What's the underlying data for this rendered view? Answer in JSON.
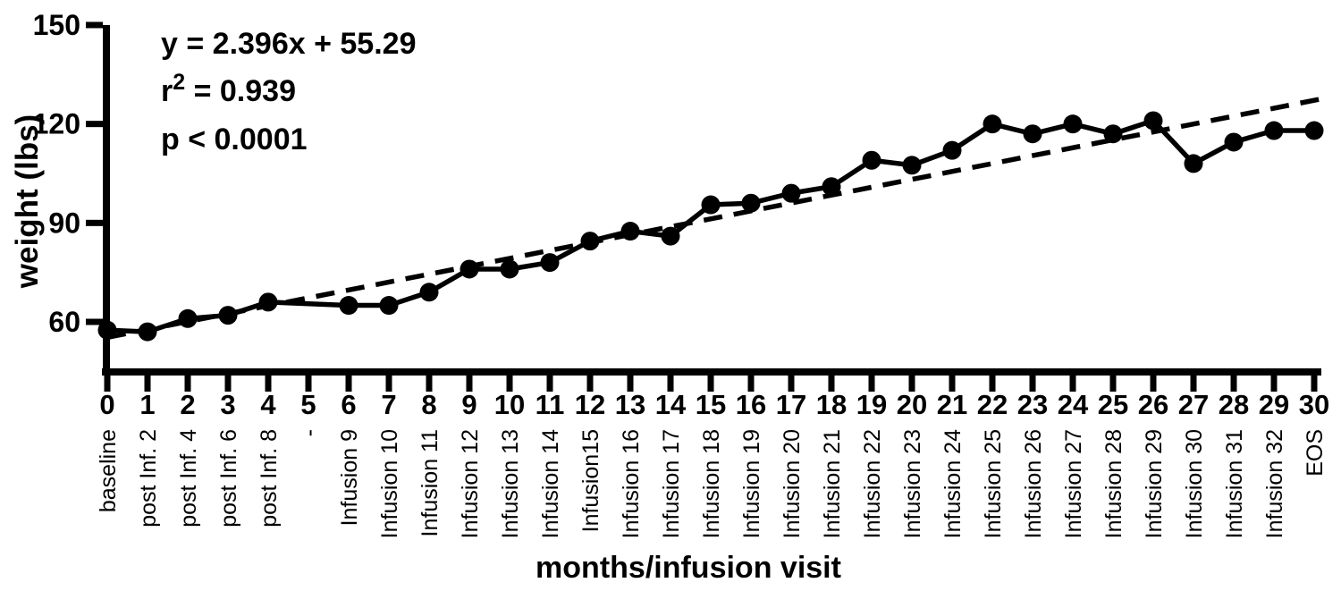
{
  "chart_data": {
    "type": "scatter",
    "title": "",
    "xlabel": "months/infusion visit",
    "ylabel": "weight (lbs)",
    "x": [
      0,
      1,
      2,
      3,
      4,
      5,
      6,
      7,
      8,
      9,
      10,
      11,
      12,
      13,
      14,
      15,
      16,
      17,
      18,
      19,
      20,
      21,
      22,
      23,
      24,
      25,
      26,
      27,
      28,
      29,
      30
    ],
    "x_tick_labels": [
      "0",
      "1",
      "2",
      "3",
      "4",
      "5",
      "6",
      "7",
      "8",
      "9",
      "10",
      "11",
      "12",
      "13",
      "14",
      "15",
      "16",
      "17",
      "18",
      "19",
      "20",
      "21",
      "22",
      "23",
      "24",
      "25",
      "26",
      "27",
      "28",
      "29",
      "30"
    ],
    "visit_labels": [
      "baseline",
      "post Inf. 2",
      "post Inf. 4",
      "post Inf. 6",
      "post Inf. 8",
      "-",
      "Infusion 9",
      "Infusion 10",
      "Infusion 11",
      "Infusion 12",
      "Infusion 13",
      "Infusion 14",
      "Infusion15",
      "Infusion 16",
      "Infusion 17",
      "Infusion 18",
      "Infusion 19",
      "Infusion 20",
      "Infusion 21",
      "Infusion 22",
      "Infusion 23",
      "Infusion 24",
      "Infusion 25",
      "Infusion 26",
      "Infusion 27",
      "Infusion 28",
      "Infusion 29",
      "Infusion 30",
      "Infusion 31",
      "Infusion 32",
      "EOS"
    ],
    "series": [
      {
        "name": "weight",
        "values": [
          57.5,
          57,
          61,
          62,
          66,
          null,
          65,
          65,
          69,
          76,
          76,
          78,
          84.5,
          87.5,
          86,
          95.5,
          96,
          99,
          101,
          109,
          107.5,
          112,
          120,
          117,
          120,
          117,
          121,
          108,
          114.5,
          118,
          118
        ]
      }
    ],
    "trendline": {
      "slope": 2.396,
      "intercept": 55.29,
      "x_start": 0,
      "x_end": 30.35,
      "style": "dashed"
    },
    "annotations": [
      {
        "text": "y = 2.396x + 55.29"
      },
      {
        "pre": "r",
        "sup": "2",
        "post": " = 0.939"
      },
      {
        "text": "p < 0.0001"
      }
    ],
    "y_ticks": [
      150,
      120,
      90,
      60
    ],
    "ylim": [
      45,
      150
    ],
    "xlim": [
      0,
      30
    ],
    "grid": false,
    "legend": "none",
    "colors": {
      "line": "#000000",
      "marker": "#000000",
      "trend": "#000000",
      "text": "#000000",
      "background": "#ffffff"
    }
  }
}
